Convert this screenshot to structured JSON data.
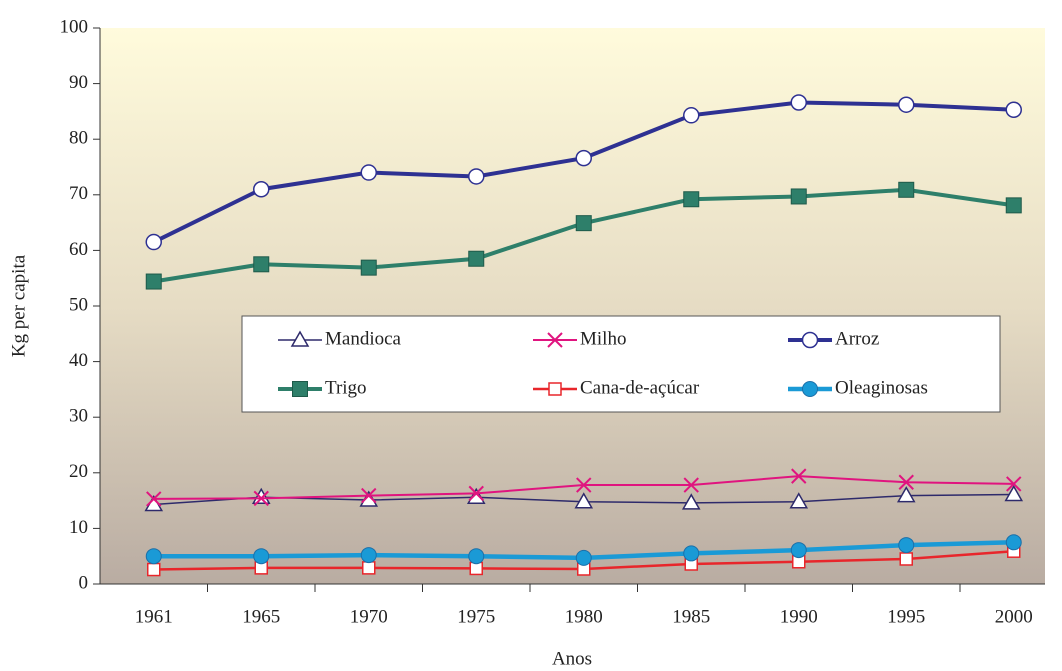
{
  "chart_data": {
    "type": "line",
    "x_label": "Anos",
    "y_label": "Kg per capita",
    "categories": [
      "1961",
      "1965",
      "1970",
      "1975",
      "1980",
      "1985",
      "1990",
      "1995",
      "2000"
    ],
    "ylim": [
      0,
      100
    ],
    "yticks": [
      0,
      10,
      20,
      30,
      40,
      50,
      60,
      70,
      80,
      90,
      100
    ],
    "series": [
      {
        "name": "Mandioca",
        "color": "#2e2a6b",
        "marker": "triangle",
        "values": [
          14.3,
          15.6,
          15.1,
          15.6,
          14.8,
          14.6,
          14.8,
          15.9,
          16.1
        ]
      },
      {
        "name": "Milho",
        "color": "#e0147f",
        "marker": "x",
        "values": [
          15.3,
          15.4,
          15.9,
          16.3,
          17.8,
          17.8,
          19.4,
          18.3,
          18
        ]
      },
      {
        "name": "Arroz",
        "color": "#2e3192",
        "marker": "circle",
        "values": [
          61.5,
          71,
          74,
          73.3,
          76.6,
          84.3,
          86.6,
          86.2,
          85.3
        ]
      },
      {
        "name": "Trigo",
        "color": "#2e7f6a",
        "marker": "square-filled",
        "values": [
          54.4,
          57.5,
          56.9,
          58.5,
          64.9,
          69.2,
          69.7,
          70.9,
          68.1
        ]
      },
      {
        "name": "Cana-de-açúcar",
        "color": "#e8262b",
        "marker": "square",
        "values": [
          2.6,
          2.9,
          2.9,
          2.8,
          2.7,
          3.6,
          4,
          4.5,
          5.9
        ]
      },
      {
        "name": "Oleaginosas",
        "color": "#1a9ad6",
        "marker": "circle-filled",
        "values": [
          5,
          5,
          5.2,
          5,
          4.7,
          5.5,
          6.1,
          7,
          7.5
        ]
      }
    ]
  }
}
